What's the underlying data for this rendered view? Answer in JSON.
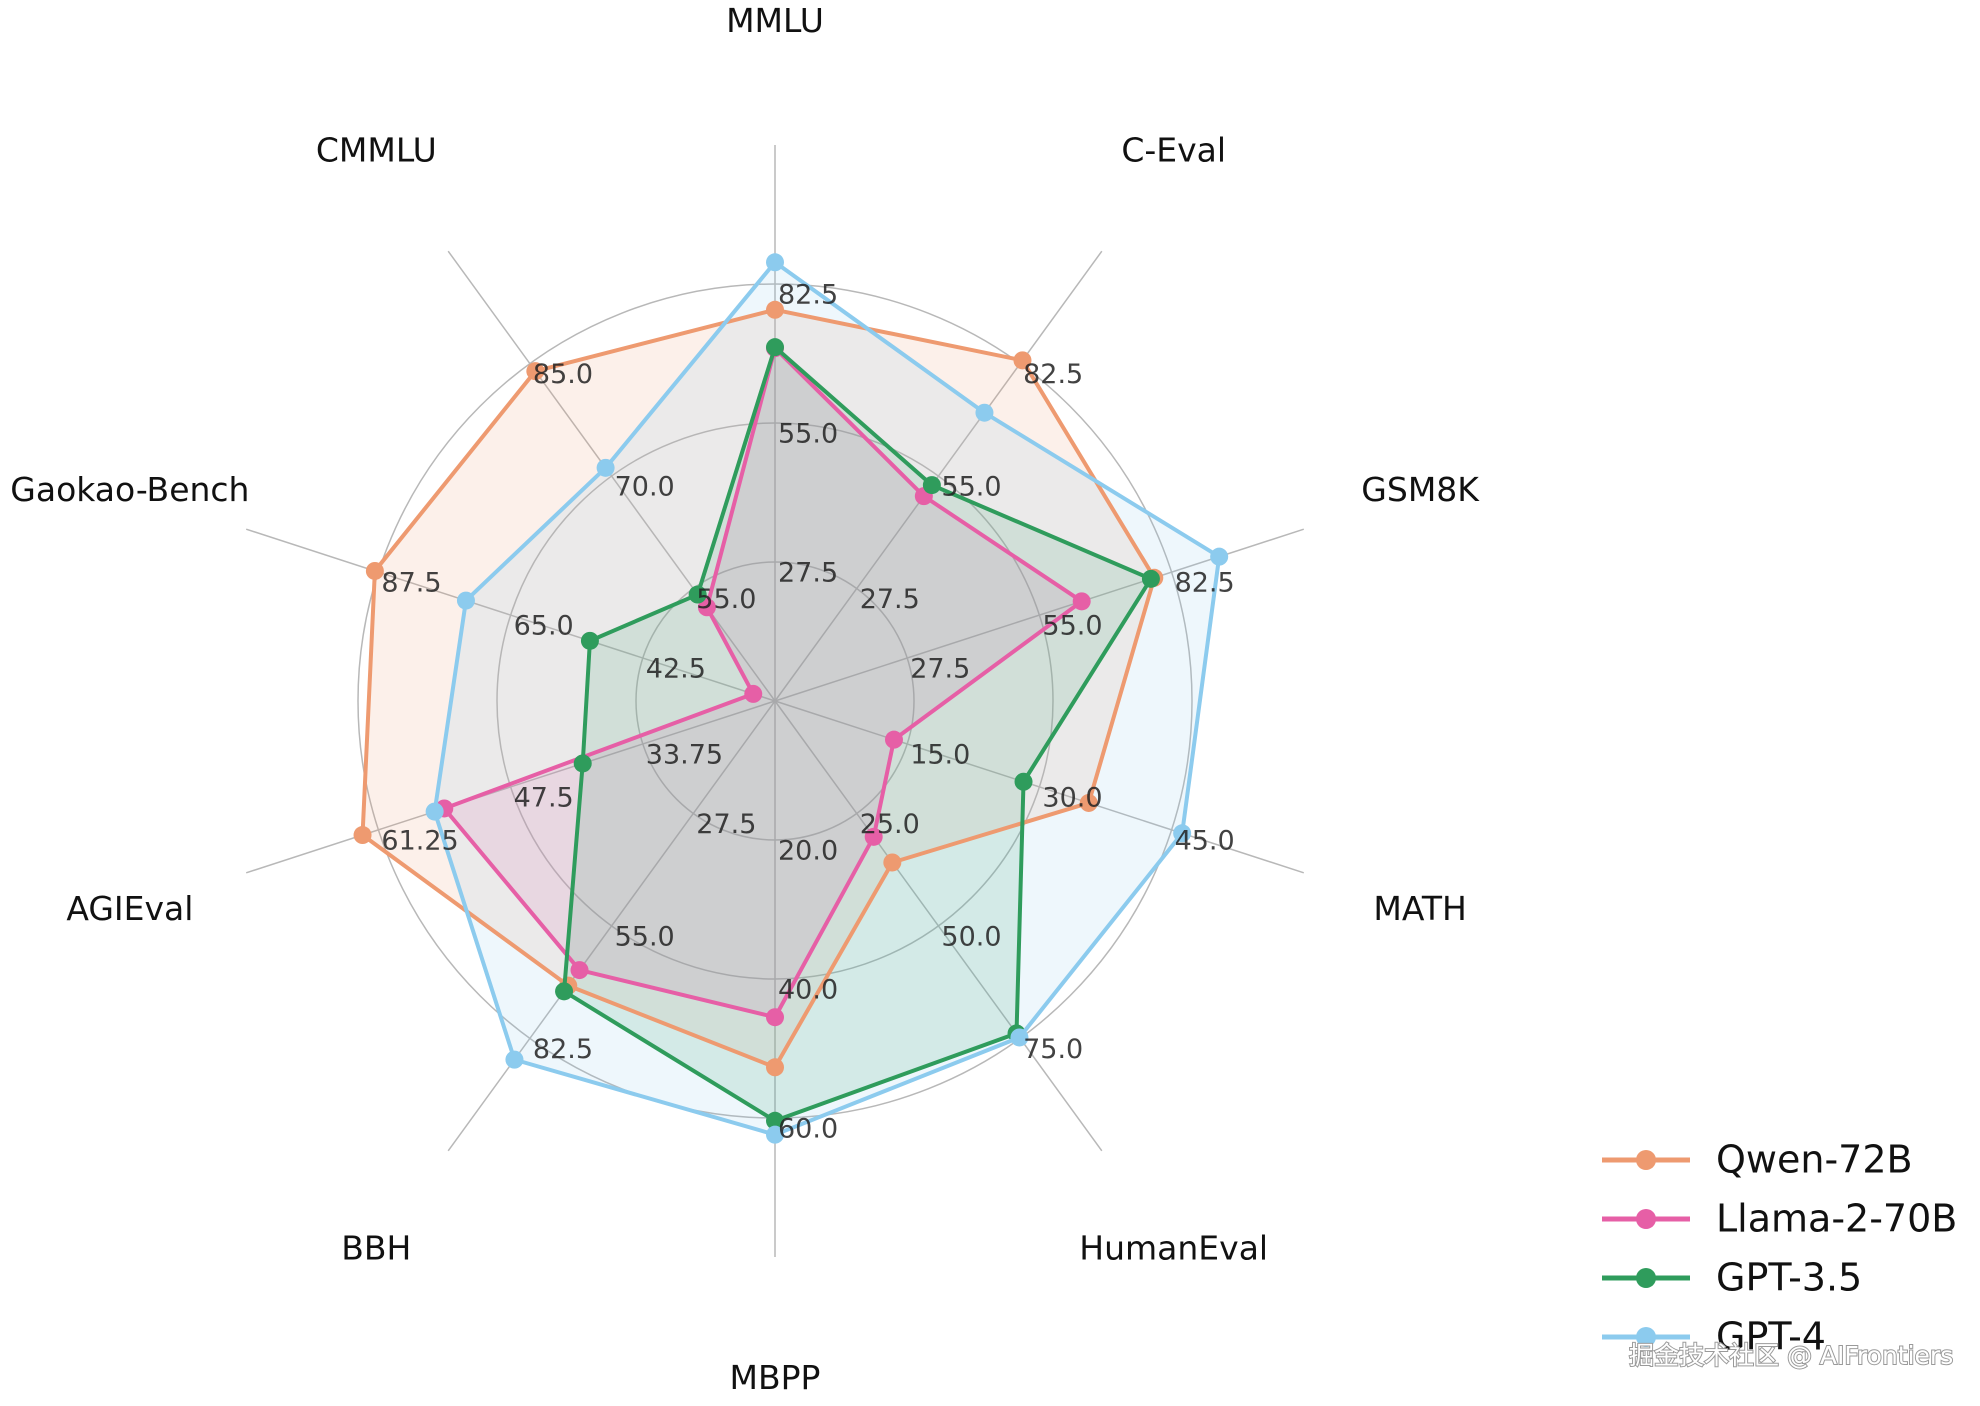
{
  "chart_data": {
    "type": "radar",
    "categories": [
      "MMLU",
      "C-Eval",
      "GSM8K",
      "MATH",
      "HumanEval",
      "MBPP",
      "BBH",
      "AGIEval",
      "Gaokao-Bench",
      "CMMLU"
    ],
    "axes": [
      {
        "lim": [
          0,
          110
        ],
        "ticks": [
          27.5,
          {
            "value": 55,
            "label": "55.0"
          },
          82.5
        ]
      },
      {
        "lim": [
          0,
          110
        ],
        "ticks": [
          27.5,
          {
            "value": 55,
            "label": "55.0"
          },
          82.5
        ]
      },
      {
        "lim": [
          0,
          110
        ],
        "ticks": [
          27.5,
          {
            "value": 55,
            "label": "55.0"
          },
          82.5
        ]
      },
      {
        "lim": [
          0,
          60
        ],
        "ticks": [
          {
            "value": 15,
            "label": "15.0"
          },
          {
            "value": 30,
            "label": "30.0"
          },
          {
            "value": 45,
            "label": "45.0"
          }
        ]
      },
      {
        "lim": [
          0,
          100
        ],
        "ticks": [
          {
            "value": 25,
            "label": "25.0"
          },
          {
            "value": 50,
            "label": "50.0"
          },
          {
            "value": 75,
            "label": "75.0"
          }
        ]
      },
      {
        "lim": [
          0,
          80
        ],
        "ticks": [
          {
            "value": 20,
            "label": "20.0"
          },
          {
            "value": 40,
            "label": "40.0"
          },
          {
            "value": 60,
            "label": "60.0"
          }
        ]
      },
      {
        "lim": [
          0,
          110
        ],
        "ticks": [
          27.5,
          {
            "value": 55,
            "label": "55.0"
          },
          82.5
        ]
      },
      {
        "lim": [
          20,
          75
        ],
        "ticks": [
          33.75,
          47.5,
          61.25
        ]
      },
      {
        "lim": [
          20,
          110
        ],
        "ticks": [
          42.5,
          {
            "value": 65,
            "label": "65.0"
          },
          87.5
        ]
      },
      {
        "lim": [
          40,
          100
        ],
        "ticks": [
          {
            "value": 55,
            "label": "55.0"
          },
          {
            "value": 70,
            "label": "70.0"
          },
          {
            "value": 85,
            "label": "85.0"
          }
        ]
      }
    ],
    "series": [
      {
        "name": "Qwen-72B",
        "color": "#ee9a70",
        "values": [
          77.4,
          83.3,
          78.9,
          35.6,
          35.9,
          52.7,
          69.6,
          62.9,
          88.1,
          84.0
        ]
      },
      {
        "name": "Llama-2-70B",
        "color": "#e65fa6",
        "values": [
          69.8,
          50.1,
          63.8,
          13.5,
          30.2,
          45.5,
          65.8,
          54.4,
          23.7,
          52.5
        ]
      },
      {
        "name": "GPT-3.5",
        "color": "#2f9c5c",
        "values": [
          70.0,
          52.8,
          78.2,
          28.2,
          73.9,
          60.4,
          71.0,
          40.0,
          51.5,
          54.2
        ]
      },
      {
        "name": "GPT-4",
        "color": "#8ccbee",
        "values": [
          86.8,
          70.5,
          92.4,
          46.2,
          74.8,
          62.4,
          87.7,
          55.4,
          72.6,
          71.1
        ]
      }
    ],
    "grid": true,
    "legend": "lower right",
    "watermark": "掘金技术社区 @ AIFrontiers"
  }
}
